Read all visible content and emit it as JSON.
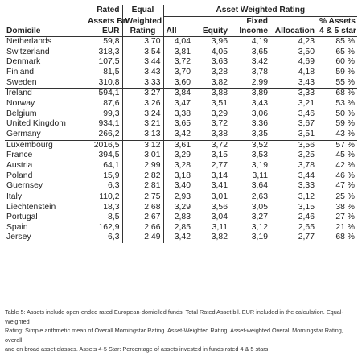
{
  "header": {
    "awr_title": "Asset Weighted Rating",
    "col_domicile": "Domicile",
    "col_rated": [
      "Rated",
      "Assets Bn",
      "EUR"
    ],
    "col_equal": [
      "Equal",
      "Weighted",
      "Rating"
    ],
    "col_all": "All",
    "col_equity": "Equity",
    "col_fixed": [
      "Fixed",
      "Income"
    ],
    "col_allocation": "Allocation",
    "col_pct": [
      "% Assets",
      "4 & 5 star"
    ]
  },
  "groups": [
    [
      [
        "Netherlands",
        "59,8",
        "3,70",
        "4,04",
        "3,96",
        "4,19",
        "4,23",
        "85 %"
      ],
      [
        "Switzerland",
        "318,3",
        "3,54",
        "3,81",
        "4,05",
        "3,65",
        "3,50",
        "65 %"
      ],
      [
        "Denmark",
        "107,5",
        "3,44",
        "3,72",
        "3,63",
        "3,42",
        "4,69",
        "60 %"
      ],
      [
        "Finland",
        "81,5",
        "3,43",
        "3,70",
        "3,28",
        "3,78",
        "4,18",
        "59 %"
      ],
      [
        "Sweden",
        "310,8",
        "3,33",
        "3,60",
        "3,82",
        "2,99",
        "3,43",
        "55 %"
      ]
    ],
    [
      [
        "Ireland",
        "594,1",
        "3,27",
        "3,84",
        "3,88",
        "3,89",
        "3,33",
        "68 %"
      ],
      [
        "Norway",
        "87,6",
        "3,26",
        "3,47",
        "3,51",
        "3,43",
        "3,21",
        "53 %"
      ],
      [
        "Belgium",
        "99,3",
        "3,24",
        "3,38",
        "3,29",
        "3,06",
        "3,46",
        "50 %"
      ],
      [
        "United Kingdom",
        "934,1",
        "3,21",
        "3,65",
        "3,72",
        "3,36",
        "3,67",
        "59 %"
      ],
      [
        "Germany",
        "266,2",
        "3,13",
        "3,42",
        "3,38",
        "3,35",
        "3,51",
        "43 %"
      ]
    ],
    [
      [
        "Luxembourg",
        "2016,5",
        "3,12",
        "3,61",
        "3,72",
        "3,52",
        "3,56",
        "57 %"
      ],
      [
        "France",
        "394,5",
        "3,01",
        "3,29",
        "3,15",
        "3,53",
        "3,25",
        "45 %"
      ],
      [
        "Austria",
        "64,1",
        "2,99",
        "3,28",
        "2,77",
        "3,19",
        "3,78",
        "42 %"
      ],
      [
        "Poland",
        "15,9",
        "2,82",
        "3,18",
        "3,14",
        "3,11",
        "3,44",
        "46 %"
      ],
      [
        "Guernsey",
        "6,3",
        "2,81",
        "3,40",
        "3,41",
        "3,64",
        "3,33",
        "47 %"
      ]
    ],
    [
      [
        "Italy",
        "110,2",
        "2,75",
        "2,93",
        "3,01",
        "2,63",
        "3,12",
        "25 %"
      ],
      [
        "Liechtenstein",
        "18,3",
        "2,68",
        "3,29",
        "3,56",
        "3,05",
        "3,15",
        "38 %"
      ],
      [
        "Portugal",
        "8,5",
        "2,67",
        "2,83",
        "3,04",
        "3,27",
        "2,46",
        "27 %"
      ],
      [
        "Spain",
        "162,9",
        "2,66",
        "2,85",
        "3,11",
        "3,12",
        "2,65",
        "21 %"
      ],
      [
        "Jersey",
        "6,3",
        "2,49",
        "3,42",
        "3,82",
        "3,19",
        "2,77",
        "68 %"
      ]
    ]
  ],
  "caption": [
    "Table 5: Assets include open-ended rated European-domiciled funds. Total Rated Asset bil. EUR included in the calculation. Equal-Weighted",
    "Rating: Simple arithmetic mean of Overall Morningstar Rating. Asset-Weighted Rating: Asset-weighted Overall Morningstar Rating, overall",
    "and on broad asset classes. Assets 4-5 Star: Percentage of assets invested in funds rated 4 & 5 stars."
  ]
}
